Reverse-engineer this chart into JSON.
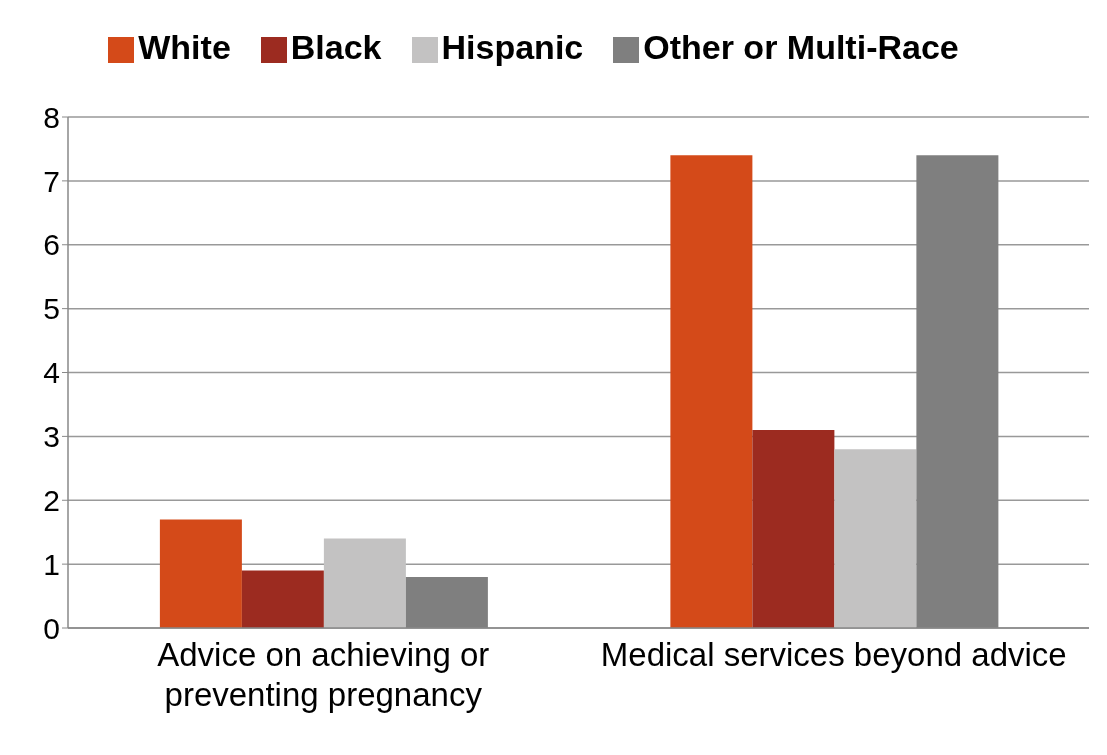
{
  "chart_data": {
    "type": "bar",
    "categories": [
      "Advice on achieving or preventing pregnancy",
      "Medical services beyond advice"
    ],
    "series": [
      {
        "name": "White",
        "color": "#d44a19",
        "values": [
          1.7,
          7.4
        ]
      },
      {
        "name": "Black",
        "color": "#9c2b20",
        "values": [
          0.9,
          3.1
        ]
      },
      {
        "name": "Hispanic",
        "color": "#c3c2c2",
        "values": [
          1.4,
          2.8
        ]
      },
      {
        "name": "Other or Multi-Race",
        "color": "#7f7f7f",
        "values": [
          0.8,
          7.4
        ]
      }
    ],
    "ylim": [
      0,
      8
    ],
    "yticks": [
      0,
      1,
      2,
      3,
      4,
      5,
      6,
      7,
      8
    ],
    "grid": "y",
    "legend": "top"
  }
}
